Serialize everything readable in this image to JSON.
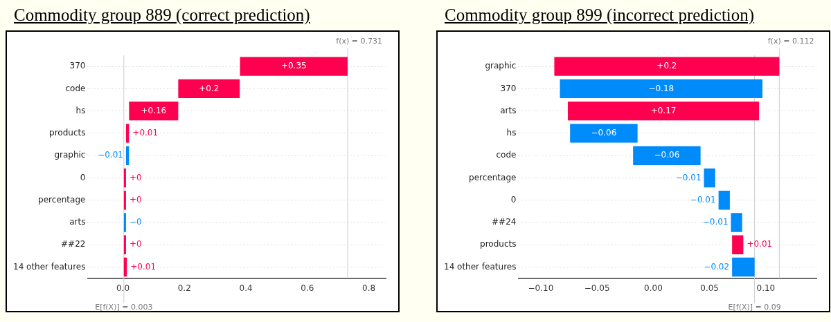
{
  "chart_data": [
    {
      "type": "bar",
      "title": "Commodity group 889 (correct prediction)",
      "orientation": "horizontal",
      "categories": [
        "370",
        "code",
        "hs",
        "products",
        "graphic",
        "0",
        "percentage",
        "arts",
        "##22",
        "14 other features"
      ],
      "values": [
        0.35,
        0.2,
        0.16,
        0.01,
        -0.01,
        0,
        0,
        0,
        0,
        0.01
      ],
      "base": [
        0.381,
        0.18,
        0.02,
        0.01,
        0.02,
        0.01,
        0.01,
        0.01,
        0.01,
        0.003
      ],
      "colors": [
        "#ff0051",
        "#ff0051",
        "#ff0051",
        "#ff0051",
        "#008bfb",
        "#ff0051",
        "#ff0051",
        "#008bfb",
        "#ff0051",
        "#ff0051"
      ],
      "value_labels": [
        "+0.35",
        "+0.2",
        "+0.16",
        "+0.01",
        "−0.01",
        "+0",
        "+0",
        "−0",
        "+0",
        "+0.01"
      ],
      "xlim": [
        -0.115,
        0.855
      ],
      "xticks": [
        {
          "value": 0,
          "label": "0.0"
        },
        {
          "value": 0.2,
          "label": "0.2"
        },
        {
          "value": 0.4,
          "label": "0.4"
        },
        {
          "value": 0.6,
          "label": "0.6"
        },
        {
          "value": 0.8,
          "label": "0.8"
        }
      ],
      "ref_lines": [
        {
          "axis": "x",
          "value": 0.731,
          "label": "f(x) = 0.731"
        },
        {
          "axis": "x",
          "value": 0.003,
          "label": "E[f(X)] = 0.003"
        }
      ],
      "grid": "y",
      "legend": false
    },
    {
      "type": "bar",
      "title": "Commodity group 899 (incorrect prediction)",
      "orientation": "horizontal",
      "categories": [
        "graphic",
        "370",
        "arts",
        "hs",
        "code",
        "percentage",
        "0",
        "##24",
        "products",
        "14 other features"
      ],
      "values": [
        0.2,
        -0.18,
        0.17,
        -0.06,
        -0.06,
        -0.01,
        -0.01,
        -0.01,
        0.01,
        -0.02
      ],
      "base": [
        -0.088,
        0.097,
        -0.076,
        -0.014,
        0.042,
        0.055,
        0.068,
        0.079,
        0.07,
        0.09
      ],
      "colors": [
        "#ff0051",
        "#008bfb",
        "#ff0051",
        "#008bfb",
        "#008bfb",
        "#008bfb",
        "#008bfb",
        "#008bfb",
        "#ff0051",
        "#008bfb"
      ],
      "value_labels": [
        "+0.2",
        "−0.18",
        "+0.17",
        "−0.06",
        "−0.06",
        "−0.01",
        "−0.01",
        "−0.01",
        "+0.01",
        "−0.02"
      ],
      "xlim": [
        -0.12,
        0.145
      ],
      "xticks": [
        {
          "value": -0.1,
          "label": "−0.10"
        },
        {
          "value": -0.05,
          "label": "−0.05"
        },
        {
          "value": 0,
          "label": "0.00"
        },
        {
          "value": 0.05,
          "label": "0.05"
        },
        {
          "value": 0.1,
          "label": "0.10"
        }
      ],
      "ref_lines": [
        {
          "axis": "x",
          "value": 0.112,
          "label": "f(x) = 0.112"
        },
        {
          "axis": "x",
          "value": 0.09,
          "label": "E[f(X)] = 0.09"
        }
      ],
      "grid": "y",
      "legend": false
    }
  ]
}
